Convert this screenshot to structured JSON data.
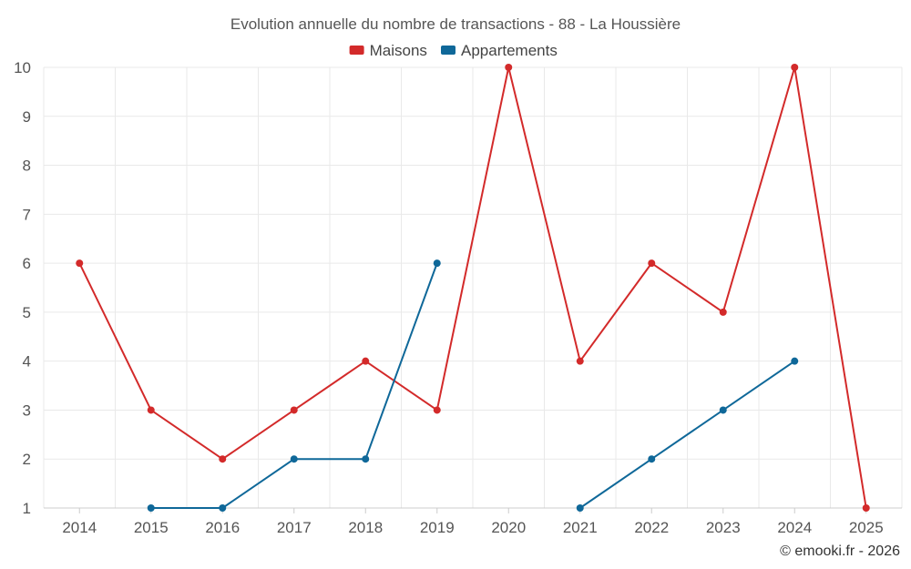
{
  "chart_data": {
    "type": "line",
    "title": "Evolution annuelle du nombre de transactions - 88 - La Houssière",
    "categories": [
      "2014",
      "2015",
      "2016",
      "2017",
      "2018",
      "2019",
      "2020",
      "2021",
      "2022",
      "2023",
      "2024",
      "2025"
    ],
    "series": [
      {
        "name": "Maisons",
        "color": "#d32a2a",
        "values": [
          6,
          3,
          2,
          3,
          4,
          3,
          10,
          4,
          6,
          5,
          10,
          1
        ]
      },
      {
        "name": "Appartements",
        "color": "#0f6899",
        "values": [
          null,
          1,
          1,
          2,
          2,
          6,
          null,
          1,
          2,
          3,
          4,
          null
        ]
      }
    ],
    "ylim": [
      1,
      10
    ],
    "yticks": [
      "1",
      "2",
      "3",
      "4",
      "5",
      "6",
      "7",
      "8",
      "9",
      "10"
    ],
    "xlabel": "",
    "ylabel": "",
    "grid": true,
    "legend": "top-center"
  },
  "credit": "© emooki.fr - 2026"
}
